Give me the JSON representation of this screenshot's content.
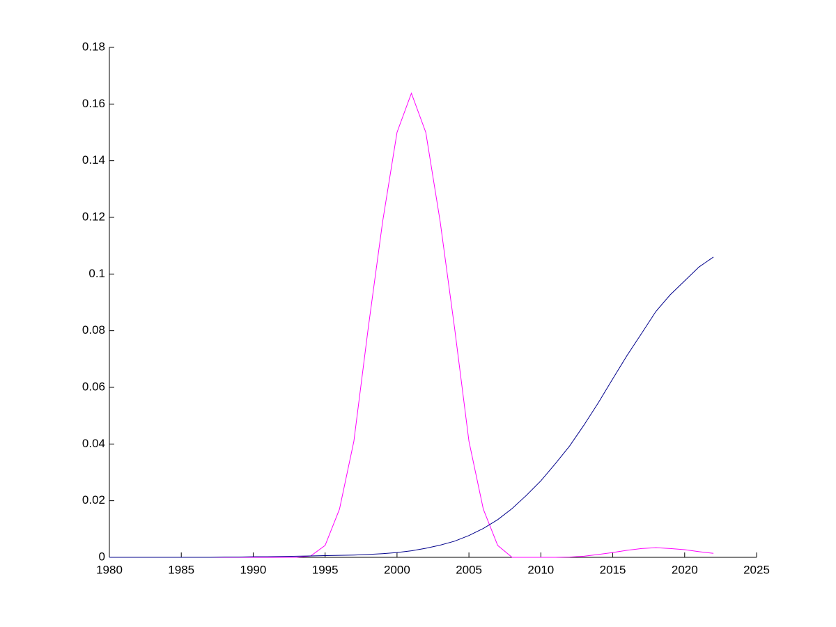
{
  "chart_data": {
    "type": "line",
    "x": [
      1980,
      1981,
      1982,
      1983,
      1984,
      1985,
      1986,
      1987,
      1988,
      1989,
      1990,
      1991,
      1992,
      1993,
      1994,
      1995,
      1996,
      1997,
      1998,
      1999,
      2000,
      2001,
      2002,
      2003,
      2004,
      2005,
      2006,
      2007,
      2008,
      2009,
      2010,
      2011,
      2012,
      2013,
      2014,
      2015,
      2016,
      2017,
      2018,
      2019,
      2020,
      2021,
      2022
    ],
    "series": [
      {
        "color": "#ff00ff",
        "values": [
          0,
          0,
          0,
          0,
          0,
          0,
          0,
          0,
          0,
          0,
          0,
          0,
          0,
          0,
          0.0005,
          0.0042,
          0.017,
          0.041,
          0.081,
          0.1185,
          0.15,
          0.1638,
          0.15,
          0.1185,
          0.081,
          0.041,
          0.017,
          0.0042,
          0,
          0,
          0,
          0,
          0.0001,
          0.0004,
          0.001,
          0.0017,
          0.0025,
          0.0031,
          0.0034,
          0.0031,
          0.0027,
          0.002,
          0.0014
        ]
      },
      {
        "color": "#00008b",
        "values": [
          0,
          0,
          0,
          0,
          0,
          0,
          0,
          0,
          0.0001,
          0.0001,
          0.0002,
          0.0002,
          0.0003,
          0.0004,
          0.0005,
          0.0006,
          0.0007,
          0.0008,
          0.001,
          0.0013,
          0.0017,
          0.0023,
          0.0032,
          0.0043,
          0.0057,
          0.0077,
          0.0102,
          0.0133,
          0.0172,
          0.0219,
          0.027,
          0.033,
          0.0393,
          0.0467,
          0.0546,
          0.063,
          0.0713,
          0.079,
          0.0868,
          0.0927,
          0.0976,
          0.1025,
          0.106
        ]
      }
    ],
    "xlim": [
      1980,
      2025
    ],
    "xticks": [
      1980,
      1985,
      1990,
      1995,
      2000,
      2005,
      2010,
      2015,
      2020,
      2025
    ],
    "ylim": [
      0,
      0.18
    ],
    "yticks": [
      0,
      0.02,
      0.04,
      0.06,
      0.08,
      0.1,
      0.12,
      0.14,
      0.16,
      0.18
    ]
  }
}
